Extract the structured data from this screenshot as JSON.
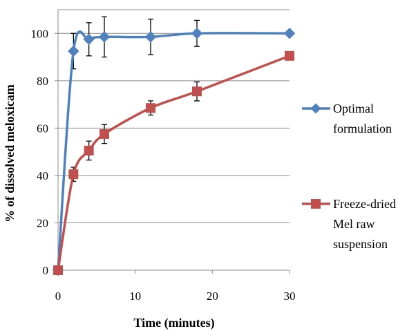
{
  "chart_data": {
    "type": "line",
    "xlabel": "Time (minutes)",
    "ylabel": "% of dissolved meloxicam",
    "xlim": [
      0,
      30
    ],
    "ylim": [
      0,
      110
    ],
    "xticks": [
      0,
      10,
      20,
      30
    ],
    "yticks": [
      0,
      20,
      40,
      60,
      80,
      100
    ],
    "grid": "horizontal",
    "legend_position": "right",
    "series": [
      {
        "name_lines": [
          "Optimal",
          "formulation"
        ],
        "color": "#4f81bd",
        "marker": "diamond",
        "x": [
          0,
          2,
          4,
          6,
          12,
          18,
          30
        ],
        "y": [
          0,
          92.5,
          97.5,
          98.5,
          98.5,
          100,
          100
        ],
        "error": [
          0,
          7.5,
          7,
          8.5,
          7.5,
          5.5,
          0
        ]
      },
      {
        "name_lines": [
          "Freeze-dried",
          "Mel raw",
          "suspension"
        ],
        "color": "#c0504d",
        "marker": "square",
        "x": [
          0,
          2,
          4,
          6,
          12,
          18,
          30
        ],
        "y": [
          0,
          40.5,
          50.5,
          57.5,
          68.5,
          75.5,
          90.5
        ],
        "error": [
          0,
          3,
          4,
          4,
          3,
          4,
          0
        ]
      }
    ]
  }
}
